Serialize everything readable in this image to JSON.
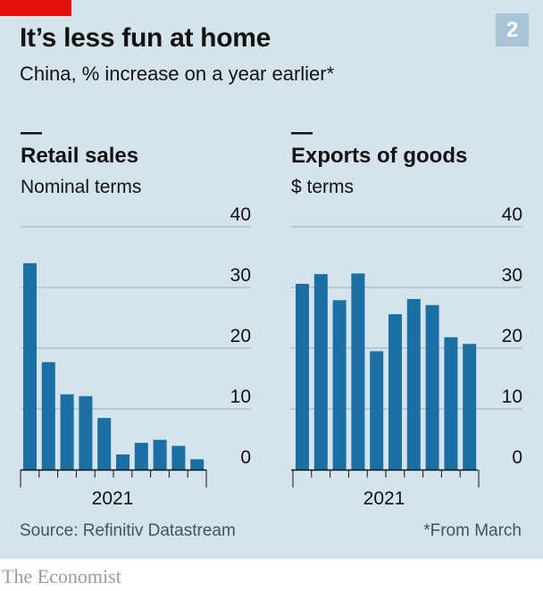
{
  "header": {
    "title": "It’s less fun at home",
    "subtitle": "China, % increase on a year earlier*",
    "badge": "2"
  },
  "footer": {
    "source": "Source: Refinitiv Datastream",
    "note": "*From March",
    "brand": "The Economist"
  },
  "colors": {
    "bar": "#1a6fa3",
    "panel_background": "#d4e3ec",
    "grid": "#9fb3bf",
    "accent_red": "#e3120b"
  },
  "chart_data": [
    {
      "type": "bar",
      "title": "Retail sales",
      "subtitle": "Nominal terms",
      "ylim": [
        0,
        40
      ],
      "yticks": [
        0,
        10,
        20,
        30,
        40
      ],
      "x_tick_label": "2021",
      "values": [
        34,
        17.7,
        12.4,
        12.1,
        8.5,
        2.5,
        4.4,
        4.9,
        3.9,
        1.7
      ]
    },
    {
      "type": "bar",
      "title": "Exports of goods",
      "subtitle": "$ terms",
      "ylim": [
        0,
        40
      ],
      "yticks": [
        0,
        10,
        20,
        30,
        40
      ],
      "x_tick_label": "2021",
      "values": [
        30.6,
        32.2,
        27.9,
        32.3,
        19.5,
        25.6,
        28.1,
        27.1,
        21.8,
        20.7
      ]
    }
  ]
}
